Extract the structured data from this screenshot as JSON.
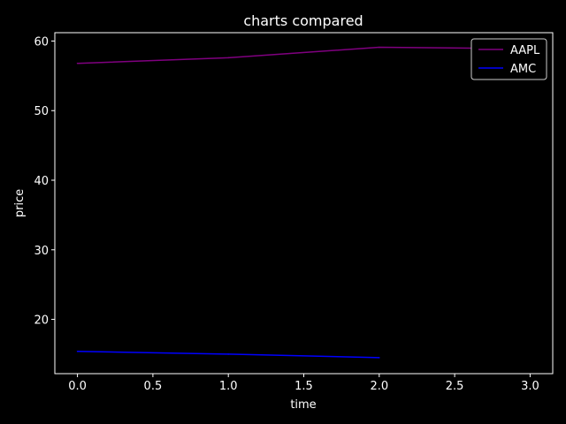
{
  "chart_data": {
    "type": "line",
    "title": "charts compared",
    "xlabel": "time",
    "ylabel": "price",
    "xlim": [
      -0.15,
      3.15
    ],
    "ylim": [
      12.2,
      61.2
    ],
    "x_ticks": [
      0.0,
      0.5,
      1.0,
      1.5,
      2.0,
      2.5,
      3.0
    ],
    "x_tick_labels": [
      "0.0",
      "0.5",
      "1.0",
      "1.5",
      "2.0",
      "2.5",
      "3.0"
    ],
    "y_ticks": [
      20,
      30,
      40,
      50,
      60
    ],
    "y_tick_labels": [
      "20",
      "30",
      "40",
      "50",
      "60"
    ],
    "grid": false,
    "legend_position": "top-right",
    "background": "#000000",
    "foreground": "#ffffff",
    "series": [
      {
        "name": "AAPL",
        "color": "#800080",
        "x": [
          0,
          1,
          2,
          3
        ],
        "y": [
          56.8,
          57.6,
          59.1,
          58.9
        ]
      },
      {
        "name": "AMC",
        "color": "#0000ff",
        "x": [
          0,
          1,
          2
        ],
        "y": [
          15.4,
          15.0,
          14.5
        ]
      }
    ]
  }
}
